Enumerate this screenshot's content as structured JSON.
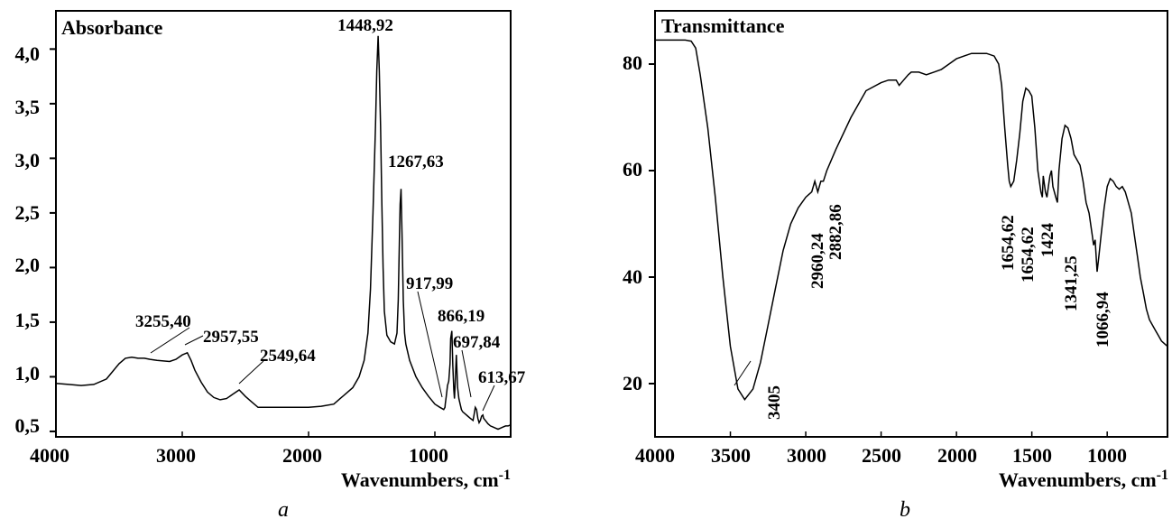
{
  "chart_data": [
    {
      "type": "line",
      "panel_letter": "a",
      "ylabel": "Absorbance",
      "xlabel": "Wavenumbers, cm-1",
      "xlim": [
        4000,
        400
      ],
      "ylim": [
        0.45,
        4.35
      ],
      "x_ticks": [
        4000,
        3000,
        2000,
        1000
      ],
      "x_tick_labels": [
        "4000",
        "3000",
        "2000",
        "1000"
      ],
      "y_ticks": [
        0.5,
        1.0,
        1.5,
        2.0,
        2.5,
        3.0,
        3.5,
        4.0
      ],
      "y_tick_labels": [
        "0,5",
        "1,0",
        "1,5",
        "2,0",
        "2,5",
        "3,0",
        "3,5",
        "4,0"
      ],
      "grid": false,
      "series": [
        {
          "x": [
            4000,
            3900,
            3800,
            3700,
            3600,
            3550,
            3500,
            3450,
            3400,
            3350,
            3300,
            3255,
            3200,
            3100,
            3050,
            3000,
            2960,
            2930,
            2900,
            2850,
            2800,
            2750,
            2700,
            2650,
            2600,
            2549,
            2500,
            2450,
            2400,
            2300,
            2200,
            2100,
            2000,
            1900,
            1800,
            1750,
            1700,
            1650,
            1600,
            1560,
            1530,
            1510,
            1490,
            1470,
            1460,
            1449,
            1440,
            1430,
            1420,
            1410,
            1400,
            1380,
            1350,
            1320,
            1300,
            1290,
            1280,
            1275,
            1268,
            1260,
            1250,
            1240,
            1230,
            1200,
            1150,
            1100,
            1050,
            1000,
            960,
            930,
            920,
            918,
            910,
            900,
            890,
            880,
            875,
            866,
            858,
            850,
            845,
            840,
            830,
            820,
            810,
            800,
            790,
            780,
            760,
            740,
            720,
            698,
            690,
            680,
            670,
            660,
            650,
            640,
            630,
            620,
            614,
            600,
            580,
            560,
            540,
            520,
            500,
            480,
            460,
            440,
            420,
            400
          ],
          "y": [
            0.94,
            0.93,
            0.92,
            0.93,
            0.98,
            1.05,
            1.12,
            1.17,
            1.18,
            1.17,
            1.17,
            1.16,
            1.15,
            1.14,
            1.16,
            1.2,
            1.22,
            1.15,
            1.06,
            0.95,
            0.86,
            0.81,
            0.79,
            0.8,
            0.84,
            0.88,
            0.82,
            0.77,
            0.72,
            0.72,
            0.72,
            0.72,
            0.72,
            0.73,
            0.75,
            0.8,
            0.85,
            0.9,
            1.0,
            1.15,
            1.4,
            1.8,
            2.5,
            3.3,
            3.8,
            4.12,
            3.8,
            3.3,
            2.6,
            2.0,
            1.6,
            1.38,
            1.32,
            1.3,
            1.4,
            1.7,
            2.3,
            2.58,
            2.72,
            2.3,
            1.7,
            1.4,
            1.3,
            1.15,
            1.0,
            0.9,
            0.82,
            0.75,
            0.72,
            0.7,
            0.72,
            0.75,
            0.82,
            0.92,
            0.96,
            1.12,
            1.35,
            1.42,
            1.1,
            0.88,
            0.8,
            0.92,
            1.2,
            0.9,
            0.8,
            0.75,
            0.7,
            0.68,
            0.66,
            0.64,
            0.62,
            0.6,
            0.65,
            0.72,
            0.7,
            0.62,
            0.58,
            0.6,
            0.64,
            0.65,
            0.62,
            0.6,
            0.57,
            0.55,
            0.54,
            0.53,
            0.52,
            0.53,
            0.54,
            0.55,
            0.55,
            0.56
          ]
        }
      ],
      "annotations": [
        {
          "text": "1448,92",
          "x": 1449
        },
        {
          "text": "1267,63",
          "x": 1268
        },
        {
          "text": "917,99",
          "x": 918
        },
        {
          "text": "866,19",
          "x": 866
        },
        {
          "text": "697,84",
          "x": 698
        },
        {
          "text": "613,67",
          "x": 614
        },
        {
          "text": "3255,40",
          "x": 3255
        },
        {
          "text": "2957,55",
          "x": 2958
        },
        {
          "text": "2549,64",
          "x": 2550
        }
      ]
    },
    {
      "type": "line",
      "panel_letter": "b",
      "ylabel": "Transmittance",
      "xlabel": "Wavenumbers, cm-1",
      "xlim": [
        4000,
        600
      ],
      "ylim": [
        10,
        90
      ],
      "x_ticks": [
        4000,
        3500,
        3000,
        2500,
        2000,
        1500,
        1000
      ],
      "x_tick_labels": [
        "4000",
        "3500",
        "3000",
        "2500",
        "2000",
        "1500",
        "1000"
      ],
      "y_ticks": [
        20,
        40,
        60,
        80
      ],
      "y_tick_labels": [
        "20",
        "40",
        "60",
        "80"
      ],
      "grid": false,
      "series": [
        {
          "x": [
            4000,
            3900,
            3800,
            3760,
            3730,
            3700,
            3650,
            3600,
            3550,
            3500,
            3450,
            3405,
            3350,
            3300,
            3250,
            3200,
            3150,
            3100,
            3050,
            3000,
            2960,
            2940,
            2920,
            2900,
            2883,
            2860,
            2800,
            2700,
            2600,
            2500,
            2450,
            2400,
            2380,
            2350,
            2320,
            2300,
            2250,
            2200,
            2150,
            2100,
            2050,
            2000,
            1950,
            1900,
            1850,
            1800,
            1750,
            1720,
            1700,
            1680,
            1660,
            1650,
            1640,
            1620,
            1600,
            1580,
            1560,
            1540,
            1520,
            1500,
            1480,
            1460,
            1440,
            1430,
            1424,
            1410,
            1400,
            1390,
            1380,
            1370,
            1360,
            1341,
            1330,
            1320,
            1300,
            1280,
            1260,
            1240,
            1220,
            1200,
            1180,
            1160,
            1140,
            1120,
            1100,
            1090,
            1080,
            1067,
            1055,
            1040,
            1020,
            1000,
            980,
            960,
            940,
            920,
            900,
            880,
            860,
            840,
            820,
            800,
            780,
            760,
            740,
            720,
            700,
            680,
            660,
            640,
            620,
            600
          ],
          "y": [
            84.5,
            84.5,
            84.5,
            84.3,
            83,
            78,
            68,
            55,
            40,
            27,
            19,
            17,
            19,
            24,
            31,
            38,
            45,
            50,
            53,
            55,
            56,
            58,
            56,
            58,
            58,
            60,
            64,
            70,
            75,
            76.5,
            77,
            77,
            76,
            77,
            78,
            78.5,
            78.5,
            78,
            78.5,
            79,
            80,
            81,
            81.5,
            82,
            82,
            82,
            81.5,
            80,
            76,
            68,
            61,
            58,
            57,
            58,
            62,
            67,
            73,
            75.5,
            75,
            74,
            68,
            60,
            56,
            55,
            59,
            56,
            55,
            57,
            59,
            60,
            57,
            55,
            54,
            60,
            66,
            68.5,
            68,
            66,
            63,
            62,
            61,
            58,
            54,
            52,
            48,
            46,
            47,
            41,
            44,
            48,
            53,
            57,
            58.5,
            58,
            57,
            56.5,
            57,
            56,
            54,
            52,
            48,
            44,
            40,
            37,
            34,
            32,
            31,
            30,
            29,
            28,
            27.5,
            27
          ]
        }
      ],
      "annotations": [
        {
          "text": "3405",
          "x": 3405
        },
        {
          "text": "2960,24",
          "x": 2960
        },
        {
          "text": "2882,86",
          "x": 2883
        },
        {
          "text": "1654,62",
          "x": 1650
        },
        {
          "text": "1654,62",
          "x": 1500
        },
        {
          "text": "1424",
          "x": 1424
        },
        {
          "text": "1341,25",
          "x": 1341
        },
        {
          "text": "1066,94",
          "x": 1067
        }
      ]
    }
  ]
}
